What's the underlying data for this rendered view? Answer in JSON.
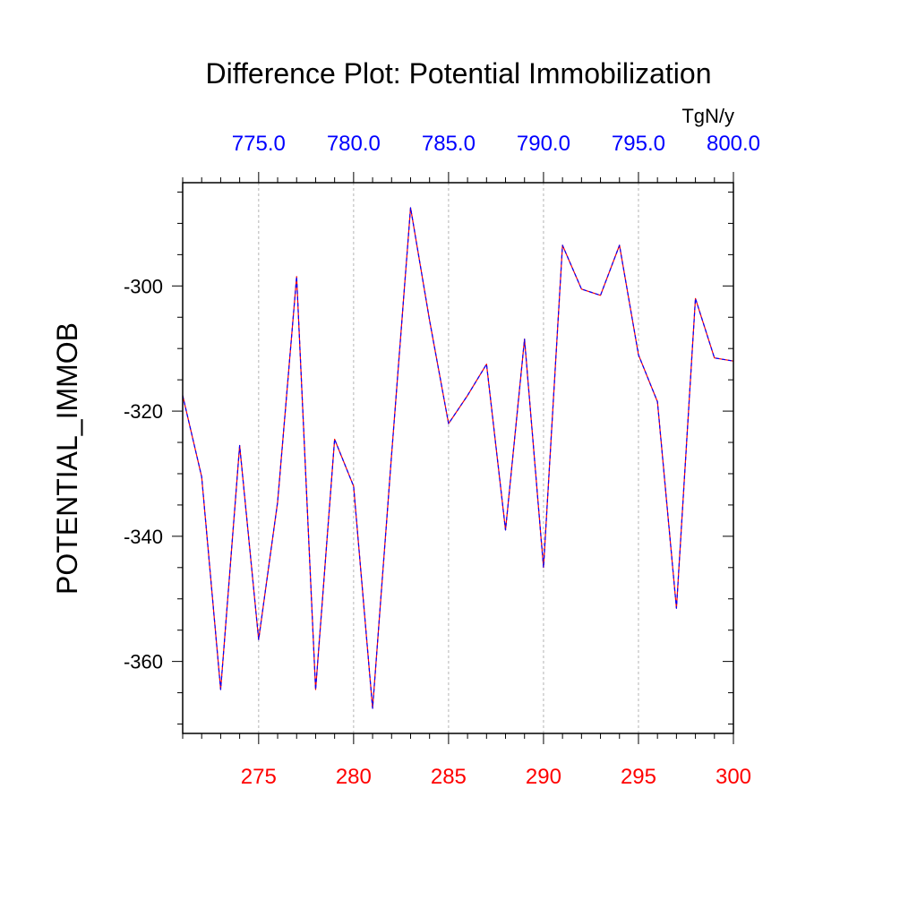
{
  "chart_data": {
    "type": "line",
    "title": "Difference Plot: Potential Immobilization",
    "units_label": "TgN/y",
    "ylabel": "POTENTIAL_IMMOB",
    "xlim": [
      271,
      300
    ],
    "ylim": [
      -371.5,
      -283.5
    ],
    "grid": {
      "x": true,
      "y": false
    },
    "x_bottom_ticks": [
      275,
      280,
      285,
      290,
      295,
      300
    ],
    "x_bottom_tick_labels": [
      "275",
      "280",
      "285",
      "290",
      "295",
      "300"
    ],
    "x_bottom_color": "#ff0000",
    "x_top_ticks": [
      275,
      280,
      285,
      290,
      295,
      300
    ],
    "x_top_tick_labels": [
      "775.0",
      "780.0",
      "785.0",
      "790.0",
      "795.0",
      "800.0"
    ],
    "x_top_color": "#0000ff",
    "y_ticks": [
      -300,
      -320,
      -340,
      -360
    ],
    "y_tick_labels": [
      "-300",
      "-320",
      "-340",
      "-360"
    ],
    "x": [
      271,
      272,
      273,
      274,
      275,
      276,
      277,
      278,
      279,
      280,
      281,
      282,
      283,
      284,
      285,
      286,
      287,
      288,
      289,
      290,
      291,
      292,
      293,
      294,
      295,
      296,
      297,
      298,
      299,
      300
    ],
    "series": [
      {
        "color": "#ff0000",
        "dash": "solid",
        "values": [
          -317.5,
          -330.5,
          -364.5,
          -325.5,
          -356.5,
          -334.5,
          -298.5,
          -364.5,
          -324.5,
          -332.0,
          -367.5,
          -327.0,
          -287.5,
          -305.5,
          -322.0,
          -317.5,
          -312.5,
          -339.0,
          -308.5,
          -345.0,
          -293.5,
          -300.5,
          -301.5,
          -293.5,
          -311.0,
          -318.5,
          -351.5,
          -302.0,
          -311.5,
          -312.0
        ]
      },
      {
        "color": "#0000ff",
        "dash": "dashed",
        "values": [
          -317.5,
          -330.5,
          -364.5,
          -325.5,
          -356.5,
          -334.5,
          -298.5,
          -364.5,
          -324.5,
          -332.0,
          -367.5,
          -327.0,
          -287.5,
          -305.5,
          -322.0,
          -317.5,
          -312.5,
          -339.0,
          -308.5,
          -345.0,
          -293.5,
          -300.5,
          -301.5,
          -293.5,
          -311.0,
          -318.5,
          -351.5,
          -302.0,
          -311.5,
          -312.0
        ]
      }
    ]
  }
}
